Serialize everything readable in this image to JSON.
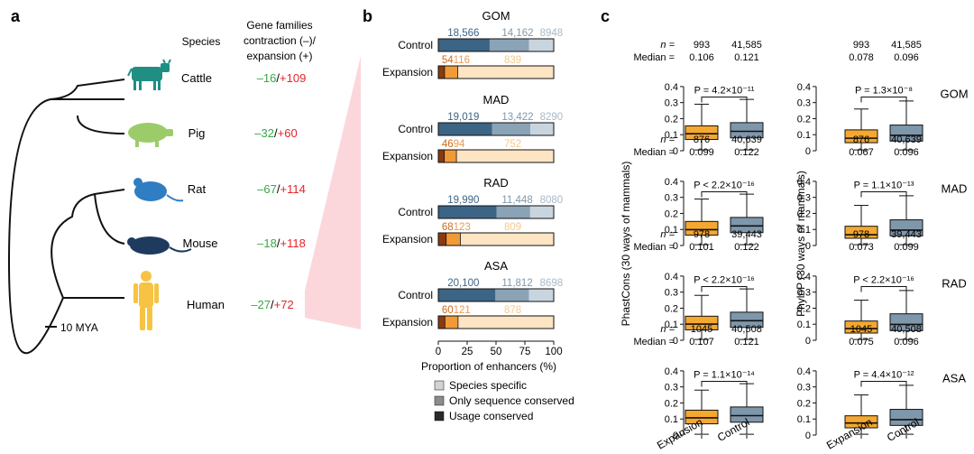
{
  "colors": {
    "cattle": "#1f8f84",
    "pig": "#9ccc6a",
    "rat": "#2f7dc2",
    "mouse": "#1e3a5f",
    "human": "#f6c343",
    "minus": "#3aa845",
    "plus": "#e3242b",
    "wedge": "#fbd7dc",
    "ctrl_usage": "#3c6485",
    "ctrl_seq": "#8aa3b7",
    "ctrl_spec": "#c9d5de",
    "exp_usage": "#8b3a10",
    "exp_seq": "#f19a38",
    "exp_spec": "#fde5c3",
    "leg_spec": "#d3d3d3",
    "leg_seq": "#8c8c8c",
    "leg_usage": "#2a2a2a",
    "box_exp": "#f5a830",
    "box_ctrl": "#7f97ab"
  },
  "panel_a": {
    "label": "a",
    "col_species": "Species",
    "col_header": [
      "Gene families",
      "contraction (–)/",
      "expansion (+)"
    ],
    "species": [
      {
        "name": "Cattle",
        "icon": "cattle-icon",
        "minus": "–16",
        "slash": "/",
        "plus": "+109"
      },
      {
        "name": "Pig",
        "icon": "pig-icon",
        "minus": "–32",
        "slash": "/",
        "plus": "+60"
      },
      {
        "name": "Rat",
        "icon": "rat-icon",
        "minus": "–67",
        "slash": "/",
        "plus": "+114"
      },
      {
        "name": "Mouse",
        "icon": "mouse-icon",
        "minus": "–18",
        "slash": "/",
        "plus": "+118"
      },
      {
        "name": "Human",
        "icon": "human-icon",
        "minus": "–27",
        "slash": "/",
        "plus": "+72"
      }
    ],
    "scale_label": "10 MYA"
  },
  "chart_data": [
    {
      "type": "stacked-bar",
      "panel": "b",
      "label": "b",
      "groups": [
        {
          "title": "GOM",
          "control": {
            "label": "Control",
            "counts": [
              "18,566",
              "14,162",
              "8948"
            ],
            "percent": [
              44.5,
              34.0,
              21.5
            ]
          },
          "expansion": {
            "label": "Expansion",
            "counts": [
              "54",
              "116",
              "839"
            ],
            "percent": [
              5.4,
              11.5,
              83.1
            ]
          }
        },
        {
          "title": "MAD",
          "control": {
            "label": "Control",
            "counts": [
              "19,019",
              "13,422",
              "8290"
            ],
            "percent": [
              46.7,
              33.0,
              20.3
            ]
          },
          "expansion": {
            "label": "Expansion",
            "counts": [
              "46",
              "94",
              "752"
            ],
            "percent": [
              5.2,
              10.5,
              84.3
            ]
          }
        },
        {
          "title": "RAD",
          "control": {
            "label": "Control",
            "counts": [
              "19,990",
              "11,448",
              "8080"
            ],
            "percent": [
              50.6,
              29.0,
              20.4
            ]
          },
          "expansion": {
            "label": "Expansion",
            "counts": [
              "68",
              "123",
              "809"
            ],
            "percent": [
              6.8,
              12.3,
              80.9
            ]
          }
        },
        {
          "title": "ASA",
          "control": {
            "label": "Control",
            "counts": [
              "20,100",
              "11,812",
              "8698"
            ],
            "percent": [
              49.5,
              29.1,
              21.4
            ]
          },
          "expansion": {
            "label": "Expansion",
            "counts": [
              "60",
              "121",
              "878"
            ],
            "percent": [
              5.7,
              11.4,
              82.9
            ]
          }
        }
      ],
      "x_ticks": [
        "0",
        "25",
        "50",
        "75",
        "100"
      ],
      "xlim": [
        0,
        100
      ],
      "xlabel": "Proportion of enhancers (%)",
      "legend": [
        "Species specific",
        "Only sequence conserved",
        "Usage conserved"
      ]
    },
    {
      "type": "boxplot",
      "panel": "c",
      "label": "c",
      "categories": [
        "Expansion",
        "Control"
      ],
      "ylabels": [
        "PhastCons (30 ways of mammals)",
        "PhyloP (30 ways of mammals)"
      ],
      "y_ticks": [
        "0",
        "0.1",
        "0.2",
        "0.3",
        "0.4"
      ],
      "ylim": [
        0,
        0.45
      ],
      "n_label": "n =",
      "median_label": "Median =",
      "rows": [
        {
          "name": "GOM",
          "phastcons": {
            "n": [
              "993",
              "41,585"
            ],
            "median": [
              "0.106",
              "0.121"
            ],
            "p": "P = 4.2×10⁻¹¹",
            "boxes": [
              {
                "lo": 0.005,
                "q1": 0.07,
                "med": 0.106,
                "q3": 0.155,
                "hi": 0.29
              },
              {
                "lo": 0.005,
                "q1": 0.08,
                "med": 0.121,
                "q3": 0.175,
                "hi": 0.32
              }
            ]
          },
          "phylop": {
            "n": [
              "993",
              "41,585"
            ],
            "median": [
              "0.078",
              "0.096"
            ],
            "p": "P = 1.3×10⁻⁸",
            "boxes": [
              {
                "lo": 0.005,
                "q1": 0.05,
                "med": 0.078,
                "q3": 0.13,
                "hi": 0.26
              },
              {
                "lo": 0.005,
                "q1": 0.06,
                "med": 0.096,
                "q3": 0.16,
                "hi": 0.31
              }
            ]
          }
        },
        {
          "name": "MAD",
          "phastcons": {
            "n": [
              "876",
              "40,639"
            ],
            "median": [
              "0.099",
              "0.122"
            ],
            "p": "P < 2.2×10⁻¹⁶",
            "boxes": [
              {
                "lo": 0.005,
                "q1": 0.065,
                "med": 0.099,
                "q3": 0.15,
                "hi": 0.29
              },
              {
                "lo": 0.005,
                "q1": 0.08,
                "med": 0.122,
                "q3": 0.175,
                "hi": 0.32
              }
            ]
          },
          "phylop": {
            "n": [
              "876",
              "40,639"
            ],
            "median": [
              "0.067",
              "0.096"
            ],
            "p": "P = 1.1×10⁻¹³",
            "boxes": [
              {
                "lo": 0.005,
                "q1": 0.045,
                "med": 0.067,
                "q3": 0.12,
                "hi": 0.25
              },
              {
                "lo": 0.005,
                "q1": 0.06,
                "med": 0.096,
                "q3": 0.16,
                "hi": 0.31
              }
            ]
          }
        },
        {
          "name": "RAD",
          "phastcons": {
            "n": [
              "978",
              "39,443"
            ],
            "median": [
              "0.101",
              "0.122"
            ],
            "p": "P < 2.2×10⁻¹⁶",
            "boxes": [
              {
                "lo": 0.005,
                "q1": 0.065,
                "med": 0.101,
                "q3": 0.15,
                "hi": 0.28
              },
              {
                "lo": 0.005,
                "q1": 0.08,
                "med": 0.122,
                "q3": 0.175,
                "hi": 0.32
              }
            ]
          },
          "phylop": {
            "n": [
              "978",
              "39,443"
            ],
            "median": [
              "0.073",
              "0.099"
            ],
            "p": "P < 2.2×10⁻¹⁶",
            "boxes": [
              {
                "lo": 0.005,
                "q1": 0.045,
                "med": 0.073,
                "q3": 0.12,
                "hi": 0.25
              },
              {
                "lo": 0.005,
                "q1": 0.06,
                "med": 0.099,
                "q3": 0.165,
                "hi": 0.31
              }
            ]
          }
        },
        {
          "name": "ASA",
          "phastcons": {
            "n": [
              "1045",
              "40,508"
            ],
            "median": [
              "0.107",
              "0.121"
            ],
            "p": "P = 1.1×10⁻¹⁴",
            "boxes": [
              {
                "lo": 0.005,
                "q1": 0.07,
                "med": 0.107,
                "q3": 0.155,
                "hi": 0.28
              },
              {
                "lo": 0.005,
                "q1": 0.08,
                "med": 0.121,
                "q3": 0.175,
                "hi": 0.32
              }
            ]
          },
          "phylop": {
            "n": [
              "1045",
              "40,508"
            ],
            "median": [
              "0.075",
              "0.096"
            ],
            "p": "P = 4.4×10⁻¹²",
            "boxes": [
              {
                "lo": 0.005,
                "q1": 0.045,
                "med": 0.075,
                "q3": 0.12,
                "hi": 0.25
              },
              {
                "lo": 0.005,
                "q1": 0.06,
                "med": 0.096,
                "q3": 0.16,
                "hi": 0.31
              }
            ]
          }
        }
      ]
    }
  ]
}
